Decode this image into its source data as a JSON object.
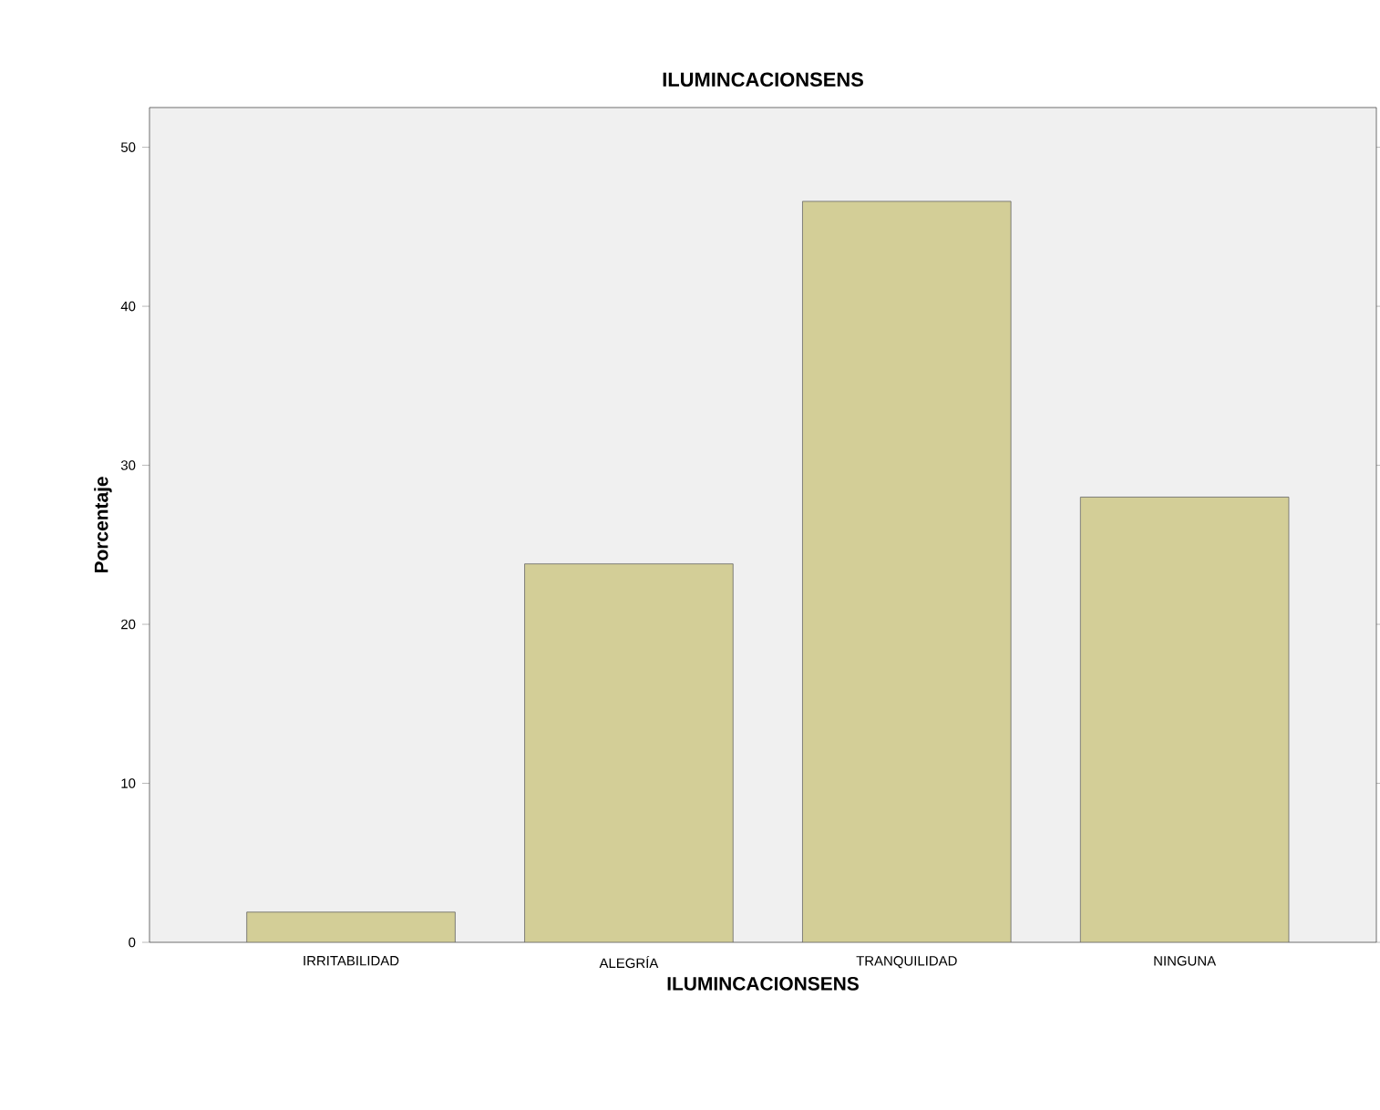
{
  "chart_data": {
    "type": "bar",
    "title": "ILUMINCACIONSENS",
    "xlabel": "ILUMINCACIONSENS",
    "ylabel": "Porcentaje",
    "categories": [
      "IRRITABILIDAD",
      "ALEGRÍA",
      "TRANQUILIDAD",
      "NINGUNA"
    ],
    "values": [
      1.9,
      23.8,
      46.6,
      28.0
    ],
    "color": "#d3ce97",
    "ylim": [
      0,
      52.5
    ],
    "yticks": [
      0,
      10,
      20,
      30,
      40,
      50
    ],
    "grid": false
  }
}
